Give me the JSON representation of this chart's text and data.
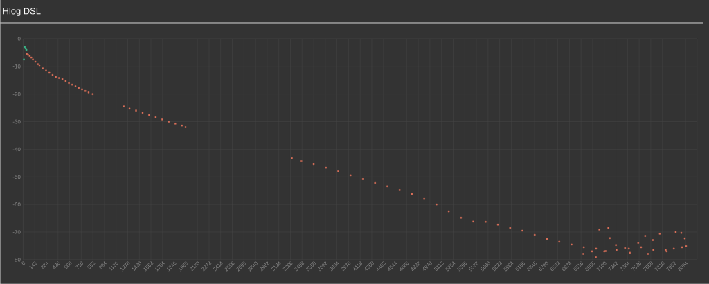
{
  "chart_data": {
    "type": "scatter",
    "title": "Hlog DSL",
    "marker": "square",
    "grid": true,
    "xlim": [
      0,
      8236
    ],
    "ylim": [
      -80,
      0
    ],
    "xticks": [
      0,
      142,
      284,
      426,
      568,
      710,
      852,
      994,
      1136,
      1278,
      1420,
      1562,
      1704,
      1846,
      1988,
      2130,
      2272,
      2414,
      2556,
      2698,
      2840,
      2982,
      3124,
      3266,
      3408,
      3550,
      3692,
      3834,
      3976,
      4118,
      4260,
      4402,
      4544,
      4686,
      4828,
      4970,
      5112,
      5254,
      5396,
      5538,
      5680,
      5822,
      5964,
      6106,
      6248,
      6390,
      6532,
      6674,
      6816,
      6958,
      7100,
      7242,
      7384,
      7526,
      7668,
      7810,
      7952,
      8094
    ],
    "yticks": [
      -80,
      -70,
      -60,
      -50,
      -40,
      -30,
      -20,
      -10,
      0
    ],
    "series": [
      {
        "color": "#3cb88a",
        "x": [
          10,
          20,
          30,
          40
        ],
        "values": [
          -7.5,
          -3.0,
          -3.5,
          -4.0
        ]
      },
      {
        "color": "#d9705a",
        "x": [
          45,
          60,
          80,
          100,
          120,
          150,
          180,
          200,
          240,
          280,
          320,
          360,
          400,
          440,
          480,
          520,
          560,
          600,
          640,
          680,
          720,
          760,
          800,
          850,
          1230,
          1300,
          1380,
          1460,
          1540,
          1620,
          1700,
          1780,
          1860,
          1940,
          1985,
          3283,
          3400,
          3550,
          3700,
          3850,
          4000,
          4150,
          4300,
          4450,
          4600,
          4750,
          4900,
          5050,
          5200,
          5350,
          5500,
          5650,
          5800,
          5950,
          6100,
          6250,
          6400,
          6550,
          6700,
          6850,
          6950,
          7000,
          7100,
          7250,
          7400,
          7550,
          7700,
          7850,
          7950,
          8050,
          8100,
          7040,
          7150,
          7167,
          7600,
          7778,
          7973,
          8041,
          8083,
          6997,
          6845,
          7634,
          7862,
          7413,
          7116,
          7243,
          7515,
          7354,
          7693
        ],
        "values": [
          -5.5,
          -5.8,
          -6.2,
          -6.8,
          -7.5,
          -8.3,
          -9.2,
          -9.8,
          -10.7,
          -11.5,
          -12.3,
          -13.1,
          -13.8,
          -14.2,
          -14.6,
          -15.3,
          -16.0,
          -16.6,
          -17.2,
          -17.8,
          -18.3,
          -18.9,
          -19.4,
          -20.0,
          -24.5,
          -25.3,
          -26.0,
          -26.8,
          -27.6,
          -28.4,
          -29.2,
          -30.0,
          -30.7,
          -31.4,
          -32.0,
          -43.2,
          -44.3,
          -45.4,
          -46.7,
          -48.0,
          -49.4,
          -50.8,
          -52.2,
          -53.4,
          -54.8,
          -56.2,
          -58.0,
          -60.0,
          -62.5,
          -64.8,
          -66.2,
          -66.3,
          -67.3,
          -68.5,
          -69.5,
          -71.0,
          -72.5,
          -73.5,
          -74.5,
          -75.5,
          -77.0,
          -76.0,
          -77.0,
          -76.5,
          -76.0,
          -75.5,
          -76.5,
          -76.5,
          -76.0,
          -75.5,
          -75.1,
          -69.1,
          -68.5,
          -72.2,
          -71.4,
          -70.6,
          -70.0,
          -70.3,
          -72.3,
          -79.1,
          -77.9,
          -77.9,
          -77.0,
          -77.5,
          -76.9,
          -74.7,
          -73.9,
          -75.8,
          -72.9
        ]
      }
    ]
  }
}
